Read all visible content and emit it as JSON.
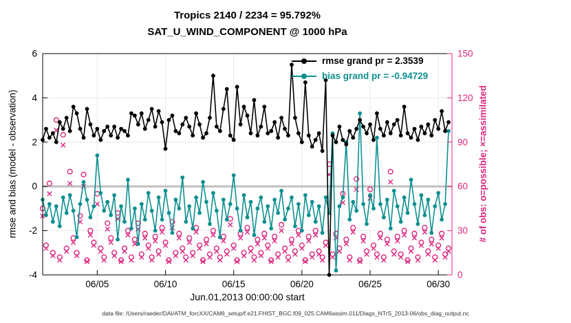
{
  "figure": {
    "footer": "data file: /Users/raeder/DAI/ATM_forcXX/CAM6_setup/f.e21.FHIST_BGC.f09_025.CAM6assim.011/Diags_NTrS_2013-06/obs_diag_output.nc"
  },
  "chart_data": {
    "type": "line",
    "title": "Tropics 2140 / 2234 = 95.792%",
    "subtitle": "SAT_U_WIND_COMPONENT @ 1000 hPa",
    "xlabel": "Jun.01,2013 00:00:00 start",
    "ylabel_left": "rmse and bias (model - observation)",
    "ylabel_right": "# of obs: o=possible; ×=assimilated",
    "xlim": [
      1,
      31
    ],
    "ylim_left": [
      -4,
      6
    ],
    "ylim_right": [
      0,
      150
    ],
    "x_ticks": [
      5,
      10,
      15,
      20,
      25,
      30
    ],
    "x_tick_labels": [
      "06/05",
      "06/10",
      "06/15",
      "06/20",
      "06/25",
      "06/30"
    ],
    "y_ticks_left": [
      -4,
      -2,
      0,
      2,
      4,
      6
    ],
    "y_ticks_right": [
      0,
      30,
      60,
      90,
      120,
      150
    ],
    "zero_line": 0,
    "grid": true,
    "legend_position": "top-right-inside",
    "colors": {
      "rmse": "#000000",
      "bias": "#0d8f8f",
      "obs": "#dc267f",
      "zero_line": "#bfbfbf",
      "grid": "#e3e3e3"
    },
    "x": [
      1,
      1.25,
      1.5,
      1.75,
      2,
      2.25,
      2.5,
      2.75,
      3,
      3.25,
      3.5,
      3.75,
      4,
      4.25,
      4.5,
      4.75,
      5,
      5.25,
      5.5,
      5.75,
      6,
      6.25,
      6.5,
      6.75,
      7,
      7.25,
      7.5,
      7.75,
      8,
      8.25,
      8.5,
      8.75,
      9,
      9.25,
      9.5,
      9.75,
      10,
      10.25,
      10.5,
      10.75,
      11,
      11.25,
      11.5,
      11.75,
      12,
      12.25,
      12.5,
      12.75,
      13,
      13.25,
      13.5,
      13.75,
      14,
      14.25,
      14.5,
      14.75,
      15,
      15.25,
      15.5,
      15.75,
      16,
      16.25,
      16.5,
      16.75,
      17,
      17.25,
      17.5,
      17.75,
      18,
      18.25,
      18.5,
      18.75,
      19,
      19.25,
      19.5,
      19.75,
      20,
      20.25,
      20.5,
      20.75,
      21,
      21.25,
      21.5,
      21.75,
      22,
      22.25,
      22.5,
      22.75,
      23,
      23.25,
      23.5,
      23.75,
      24,
      24.25,
      24.5,
      24.75,
      25,
      25.25,
      25.5,
      25.75,
      26,
      26.25,
      26.5,
      26.75,
      27,
      27.25,
      27.5,
      27.75,
      28,
      28.25,
      28.5,
      28.75,
      29,
      29.25,
      29.5,
      29.75,
      30,
      30.25,
      30.5,
      30.75
    ],
    "series": [
      {
        "name": "rmse grand pr = 2.3539",
        "axis": "left",
        "type": "line",
        "marker": "filled-circle",
        "color": "#000000",
        "values": [
          2.1,
          2.6,
          2.2,
          2.4,
          2.0,
          2.9,
          2.6,
          3.1,
          2.5,
          3.6,
          3.3,
          2.6,
          2.2,
          3.5,
          2.8,
          2.3,
          2.6,
          2.1,
          2.5,
          2.7,
          2.3,
          2.7,
          2.2,
          2.6,
          2.5,
          2.3,
          3.3,
          3.2,
          2.8,
          3.3,
          2.6,
          3.0,
          3.5,
          2.7,
          3.4,
          2.9,
          1.7,
          3.0,
          3.2,
          2.5,
          2.4,
          2.8,
          3.1,
          2.7,
          2.3,
          3.3,
          2.8,
          2.2,
          2.4,
          3.1,
          5.0,
          2.7,
          2.5,
          3.5,
          4.4,
          2.3,
          2.1,
          4.5,
          2.8,
          3.6,
          3.2,
          2.4,
          3.9,
          2.3,
          2.7,
          3.6,
          2.4,
          2.5,
          2.9,
          2.2,
          3.1,
          2.6,
          2.3,
          5.5,
          3.1,
          2.4,
          2.0,
          4.7,
          2.3,
          1.8,
          2.1,
          2.4,
          1.6,
          4.8,
          -4.0,
          2.3,
          2.0,
          2.7,
          2.1,
          1.9,
          2.5,
          2.2,
          2.6,
          3.0,
          2.7,
          2.4,
          2.8,
          2.1,
          3.3,
          2.6,
          2.3,
          2.9,
          2.4,
          2.8,
          3.0,
          2.3,
          3.6,
          2.4,
          2.2,
          2.6,
          2.1,
          2.7,
          2.4,
          2.8,
          2.3,
          3.0,
          2.6,
          3.4,
          2.5,
          2.9
        ]
      },
      {
        "name": "bias grand pr = -0.94729",
        "axis": "left",
        "type": "line",
        "marker": "filled-circle",
        "color": "#0d8f8f",
        "values": [
          -0.6,
          -1.3,
          -0.8,
          -1.6,
          -0.9,
          -1.8,
          -0.5,
          -1.2,
          -0.4,
          -1.1,
          -2.3,
          -0.8,
          0.2,
          -0.6,
          -1.4,
          -0.9,
          1.4,
          -0.3,
          -1.1,
          -0.7,
          -1.3,
          -0.4,
          -2.4,
          -0.9,
          -1.6,
          0.3,
          -1.9,
          -1.0,
          -2.6,
          -0.8,
          -1.5,
          -0.3,
          -1.1,
          -2.0,
          -0.5,
          -1.5,
          -0.2,
          -1.2,
          -2.1,
          -0.6,
          -1.0,
          0.4,
          -1.6,
          -0.9,
          -1.9,
          -0.5,
          -1.2,
          0.2,
          -0.7,
          -1.7,
          -0.3,
          -1.1,
          -2.3,
          -0.6,
          -1.5,
          -0.8,
          0.5,
          -1.0,
          -2.0,
          -0.4,
          -1.4,
          -0.7,
          -2.2,
          -1.0,
          -0.5,
          -1.6,
          -0.9,
          -1.9,
          -0.6,
          -1.2,
          -0.2,
          -1.5,
          -1.0,
          -0.5,
          -1.8,
          -0.8,
          -2.0,
          -0.4,
          -1.3,
          -0.7,
          -1.6,
          -0.9,
          -2.1,
          -0.5,
          -1.2,
          2.4,
          -3.8,
          -0.9,
          -0.5,
          2.0,
          -1.5,
          -0.7,
          -1.1,
          3.3,
          -0.8,
          -1.7,
          -0.4,
          -1.0,
          2.2,
          -0.8,
          -1.4,
          -0.6,
          -1.9,
          -0.2,
          -0.9,
          -1.6,
          -0.5,
          -1.2,
          0.3,
          -0.8,
          -1.7,
          -0.4,
          -1.3,
          -0.6,
          -2.1,
          -0.9,
          -0.3,
          -1.5,
          -0.8,
          2.5
        ]
      },
      {
        "name": "possible",
        "axis": "right",
        "type": "scatter",
        "marker": "circle",
        "color": "#dc267f",
        "values": [
          45,
          20,
          62,
          15,
          105,
          12,
          95,
          18,
          70,
          25,
          15,
          40,
          68,
          10,
          30,
          22,
          55,
          18,
          12,
          35,
          25,
          15,
          42,
          10,
          18,
          30,
          12,
          24,
          35,
          14,
          28,
          20,
          12,
          26,
          16,
          32,
          22,
          10,
          36,
          15,
          28,
          18,
          12,
          25,
          15,
          32,
          20,
          10,
          24,
          14,
          30,
          18,
          12,
          26,
          16,
          38,
          20,
          10,
          28,
          15,
          32,
          18,
          12,
          24,
          15,
          28,
          20,
          10,
          26,
          14,
          34,
          18,
          12,
          24,
          16,
          30,
          20,
          10,
          26,
          14,
          30,
          16,
          12,
          22,
          75,
          14,
          28,
          18,
          55,
          24,
          12,
          32,
          65,
          10,
          26,
          16,
          58,
          20,
          14,
          28,
          12,
          24,
          70,
          16,
          26,
          14,
          30,
          10,
          18,
          28,
          12,
          22,
          32,
          16,
          24,
          12,
          20,
          28,
          14,
          18
        ]
      },
      {
        "name": "assimilated",
        "axis": "right",
        "type": "scatter",
        "marker": "cross",
        "color": "#dc267f",
        "values": [
          40,
          18,
          55,
          13,
          98,
          10,
          88,
          16,
          62,
          22,
          13,
          36,
          60,
          9,
          27,
          20,
          48,
          16,
          10,
          31,
          22,
          13,
          38,
          9,
          16,
          27,
          10,
          21,
          31,
          12,
          25,
          18,
          10,
          23,
          14,
          29,
          20,
          9,
          32,
          13,
          25,
          16,
          10,
          22,
          13,
          29,
          18,
          9,
          21,
          12,
          27,
          16,
          10,
          23,
          14,
          34,
          18,
          9,
          25,
          13,
          29,
          16,
          10,
          21,
          13,
          25,
          18,
          9,
          23,
          12,
          30,
          16,
          10,
          21,
          14,
          27,
          18,
          9,
          23,
          12,
          27,
          14,
          10,
          20,
          68,
          12,
          25,
          16,
          49,
          21,
          10,
          29,
          58,
          9,
          23,
          14,
          52,
          18,
          12,
          25,
          10,
          21,
          63,
          14,
          23,
          12,
          27,
          9,
          16,
          25,
          10,
          20,
          29,
          14,
          21,
          10,
          18,
          25,
          12,
          16
        ]
      }
    ]
  }
}
